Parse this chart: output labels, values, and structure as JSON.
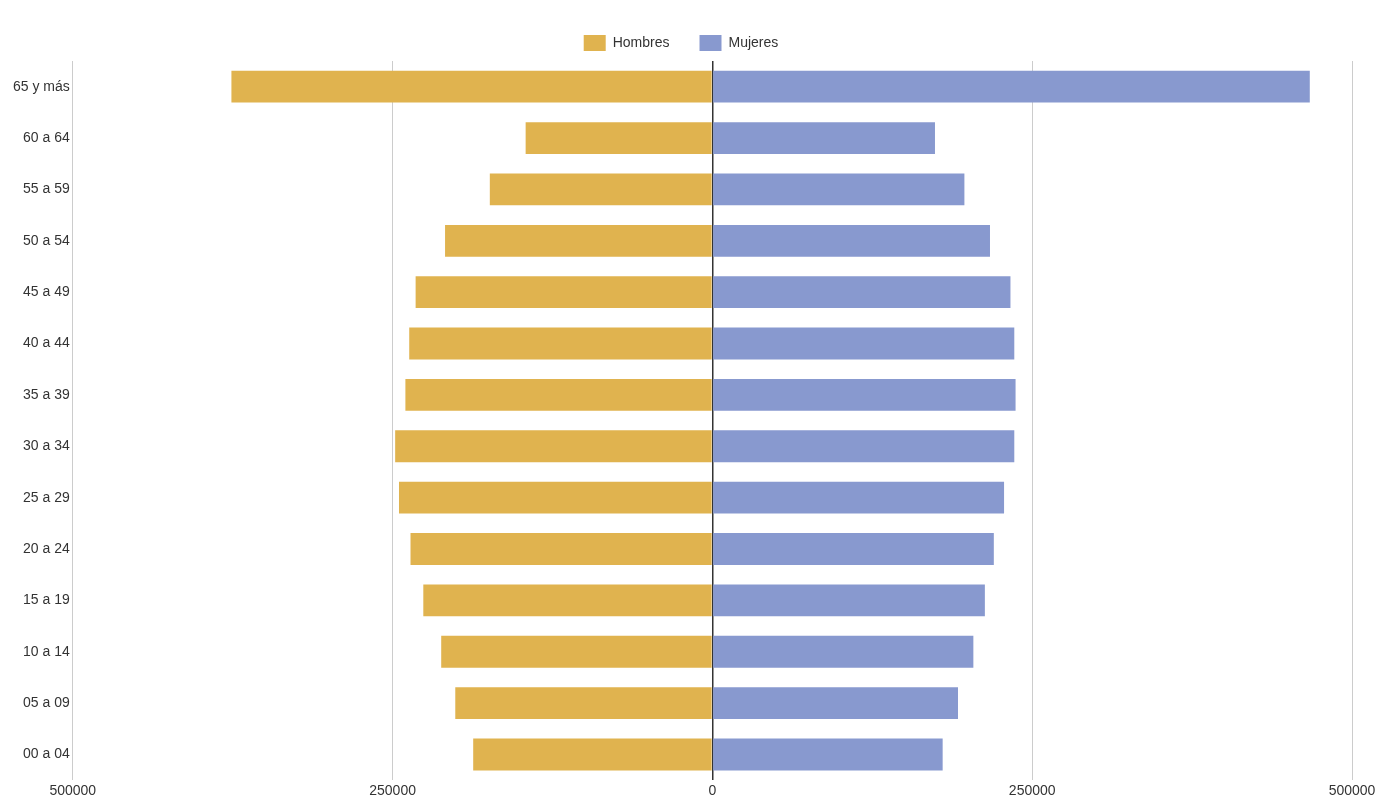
{
  "chart_data": {
    "type": "bar",
    "orientation": "horizontal",
    "stacked": true,
    "categories": [
      "65 y más",
      "60 a 64",
      "55 a 59",
      "50 a 54",
      "45 a 49",
      "40 a 44",
      "35 a 39",
      "30 a 34",
      "25 a 29",
      "20 a 24",
      "15 a 19",
      "10 a 14",
      "05 a 09",
      "00 a 04"
    ],
    "series": [
      {
        "name": "Hombres",
        "color": "#e0b34f",
        "values": [
          -376000,
          -146000,
          -174000,
          -209000,
          -232000,
          -237000,
          -240000,
          -248000,
          -245000,
          -236000,
          -226000,
          -212000,
          -201000,
          -187000
        ]
      },
      {
        "name": "Mujeres",
        "color": "#8899cf",
        "values": [
          467000,
          174000,
          197000,
          217000,
          233000,
          236000,
          237000,
          236000,
          228000,
          220000,
          213000,
          204000,
          192000,
          180000
        ]
      }
    ],
    "xlim": [
      -500000,
      500000
    ],
    "xticks": [
      {
        "value": -500000,
        "label": "500000"
      },
      {
        "value": -250000,
        "label": "250000"
      },
      0,
      250000,
      500000
    ],
    "grid": "x",
    "legend": "top"
  }
}
